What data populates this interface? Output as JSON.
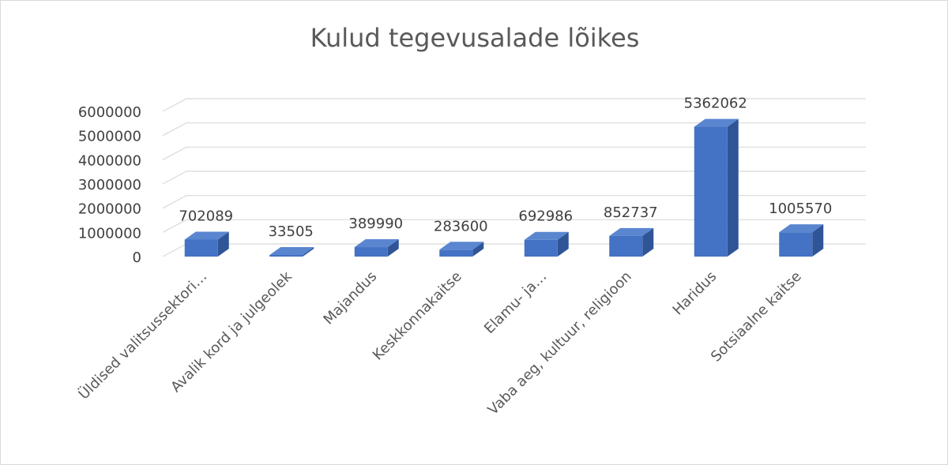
{
  "chart_data": {
    "type": "bar",
    "title": "Kulud tegevusalade lõikes",
    "categories": [
      "Üldised valitsussektori…",
      "Avalik kord ja julgeolek",
      "Majandus",
      "Keskkonnakaitse",
      "Elamu- ja…",
      "Vaba aeg, kultuur, religioon",
      "Haridus",
      "Sotsiaalne kaitse"
    ],
    "values": [
      702089,
      33505,
      389990,
      283600,
      692986,
      852737,
      5362062,
      1005570
    ],
    "yticks": [
      "0",
      "1000000",
      "2000000",
      "3000000",
      "4000000",
      "5000000",
      "6000000"
    ],
    "ylim": [
      0,
      6000000
    ],
    "xlabel": "",
    "ylabel": "",
    "grid": true,
    "legend": "none",
    "style": "3d-column",
    "colors": {
      "bar_front": "#4472c4",
      "bar_side": "#2f5597",
      "bar_top": "#5a86d0",
      "grid": "#d9d9d9"
    }
  }
}
